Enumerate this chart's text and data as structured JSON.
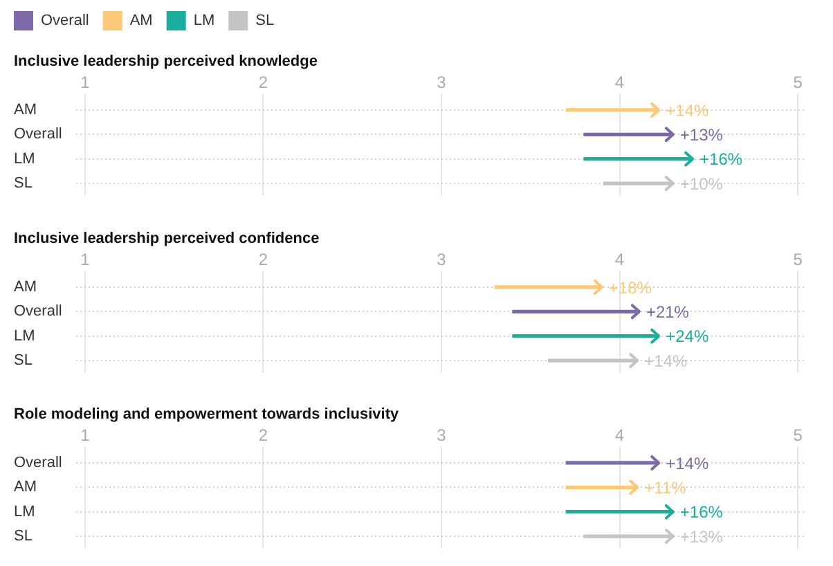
{
  "chart_data": [
    {
      "type": "bar",
      "orientation": "horizontal",
      "title": "Inclusive leadership perceived knowledge",
      "categories": [
        "AM",
        "Overall",
        "LM",
        "SL"
      ],
      "xlim": [
        0.95,
        5.05
      ],
      "xticks": [
        1,
        2,
        3,
        4,
        5
      ],
      "grid": true,
      "legend": "top left",
      "series": [
        {
          "name": "Overall",
          "color": "#7b69a8",
          "values": [
            null,
            0.5,
            null,
            null
          ],
          "base": [
            null,
            3.8,
            null,
            null
          ]
        },
        {
          "name": "AM",
          "color": "#fcc876",
          "values": [
            0.52,
            null,
            null,
            null
          ],
          "base": [
            3.7,
            null,
            null,
            null
          ]
        },
        {
          "name": "LM",
          "color": "#1aae9f",
          "values": [
            null,
            null,
            0.61,
            null
          ],
          "base": [
            null,
            null,
            3.8,
            null
          ]
        },
        {
          "name": "SL",
          "color": "#c4c4c4",
          "values": [
            null,
            null,
            null,
            0.39
          ],
          "base": [
            null,
            null,
            null,
            3.91
          ]
        }
      ],
      "annotations": [
        {
          "text": "+14%",
          "x": 4.22,
          "y": "AM"
        },
        {
          "text": "+13%",
          "x": 4.3,
          "y": "Overall"
        },
        {
          "text": "+16%",
          "x": 4.41,
          "y": "LM"
        },
        {
          "text": "+10%",
          "x": 4.3,
          "y": "SL"
        }
      ]
    },
    {
      "type": "bar",
      "orientation": "horizontal",
      "title": "Inclusive leadership perceived confidence",
      "categories": [
        "AM",
        "Overall",
        "LM",
        "SL"
      ],
      "xlim": [
        0.95,
        5.05
      ],
      "xticks": [
        1,
        2,
        3,
        4,
        5
      ],
      "grid": true,
      "series": [
        {
          "color": "#7b69a8",
          "values": [
            null,
            0.71,
            null,
            null
          ],
          "base": [
            null,
            3.4,
            null,
            null
          ]
        },
        {
          "color": "#fcc876",
          "values": [
            0.6,
            null,
            null,
            null
          ],
          "base": [
            3.3,
            null,
            null,
            null
          ]
        },
        {
          "color": "#1aae9f",
          "values": [
            null,
            null,
            0.82,
            null
          ],
          "base": [
            null,
            null,
            3.4,
            null
          ]
        },
        {
          "color": "#c4c4c4",
          "values": [
            null,
            null,
            null,
            0.5
          ],
          "base": [
            null,
            null,
            null,
            3.6
          ]
        }
      ],
      "annotations": [
        {
          "text": "+18%",
          "x": 3.9,
          "y": "AM"
        },
        {
          "text": "+21%",
          "x": 4.11,
          "y": "Overall"
        },
        {
          "text": "+24%",
          "x": 4.22,
          "y": "LM"
        },
        {
          "text": "+14%",
          "x": 4.1,
          "y": "SL"
        }
      ]
    },
    {
      "type": "bar",
      "orientation": "horizontal",
      "title": "Role modeling and empowerment towards inclusivity",
      "categories": [
        "Overall",
        "AM",
        "LM",
        "SL"
      ],
      "xlim": [
        0.95,
        5.05
      ],
      "xticks": [
        1,
        2,
        3,
        4,
        5
      ],
      "grid": true,
      "series": [
        {
          "color": "#7b69a8",
          "values": [
            0.52,
            null,
            null,
            null
          ],
          "base": [
            3.7,
            null,
            null,
            null
          ]
        },
        {
          "color": "#fcc876",
          "values": [
            null,
            0.4,
            null,
            null
          ],
          "base": [
            null,
            3.7,
            null,
            null
          ]
        },
        {
          "color": "#1aae9f",
          "values": [
            null,
            null,
            0.6,
            null
          ],
          "base": [
            null,
            null,
            3.7,
            null
          ]
        },
        {
          "color": "#c4c4c4",
          "values": [
            null,
            null,
            null,
            0.5
          ],
          "base": [
            null,
            null,
            null,
            3.8
          ]
        }
      ],
      "annotations": [
        {
          "text": "+14%",
          "x": 4.22,
          "y": "Overall"
        },
        {
          "text": "+11%",
          "x": 4.1,
          "y": "AM"
        },
        {
          "text": "+16%",
          "x": 4.3,
          "y": "LM"
        },
        {
          "text": "+13%",
          "x": 4.3,
          "y": "SL"
        }
      ]
    }
  ]
}
